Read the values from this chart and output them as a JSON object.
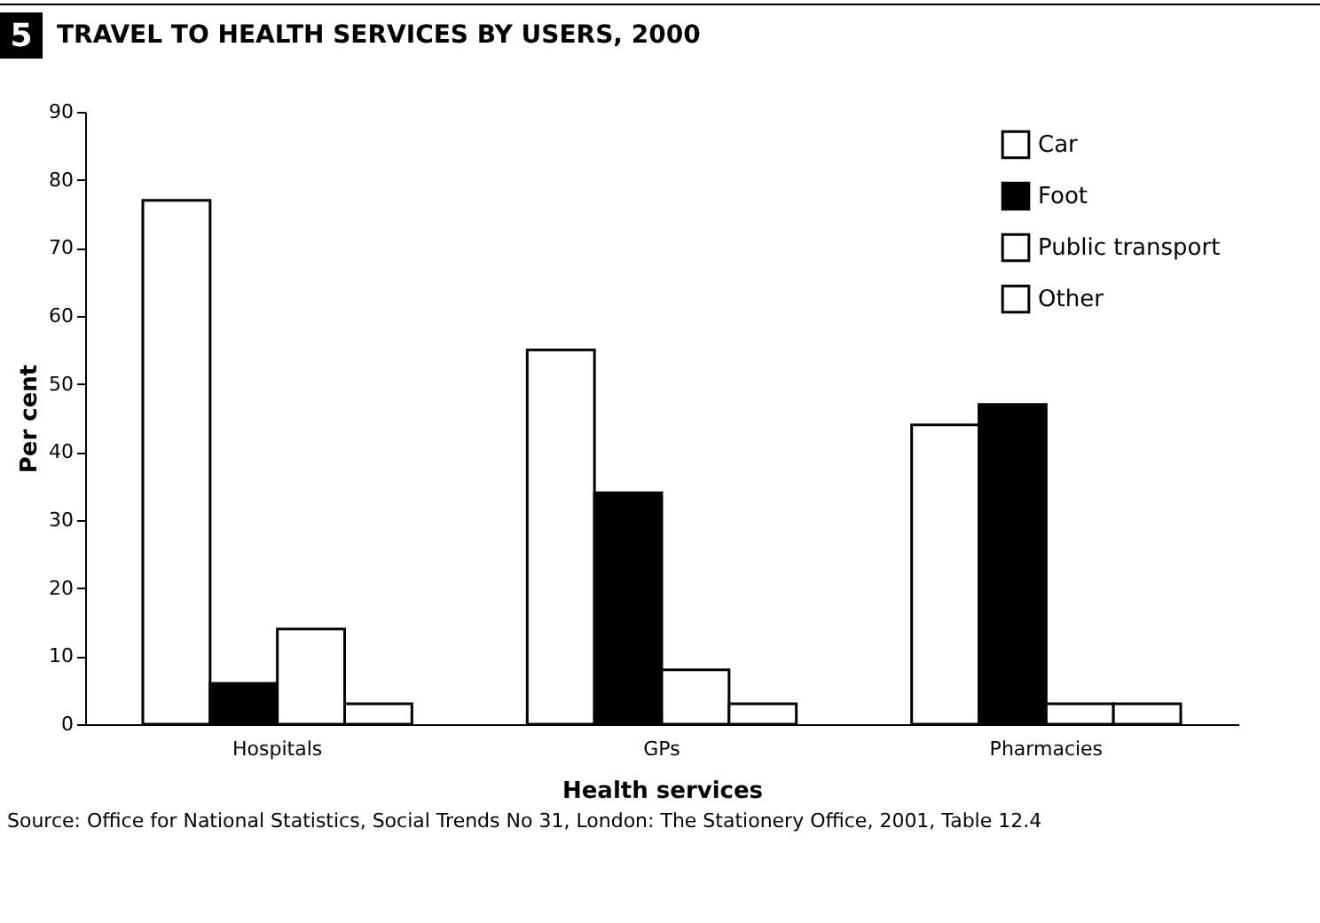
{
  "chart_data": {
    "type": "bar",
    "title": "TRAVEL TO HEALTH SERVICES BY USERS, 2000",
    "xlabel": "Health services",
    "ylabel": "Per cent",
    "annotations": [
      "5",
      "Source: Office for National Statistics, Social Trends No 31, London: The Stationery Office, 2001, Table 12.4"
    ],
    "categories": [
      "Hospitals",
      "GPs",
      "Pharmacies"
    ],
    "series": [
      {
        "name": "Car",
        "color": "#ffffff",
        "values": [
          77,
          55,
          44
        ]
      },
      {
        "name": "Foot",
        "color": "#000000",
        "values": [
          6,
          34,
          47
        ]
      },
      {
        "name": "Public transport",
        "color": "#ffffff",
        "values": [
          14,
          8,
          3
        ]
      },
      {
        "name": "Other",
        "color": "#ffffff",
        "values": [
          3,
          3,
          3
        ]
      }
    ],
    "ylim": [
      0,
      90
    ],
    "yticks": [
      0,
      10,
      20,
      30,
      40,
      50,
      60,
      70,
      80,
      90
    ],
    "grid": false,
    "legend": "top right"
  }
}
